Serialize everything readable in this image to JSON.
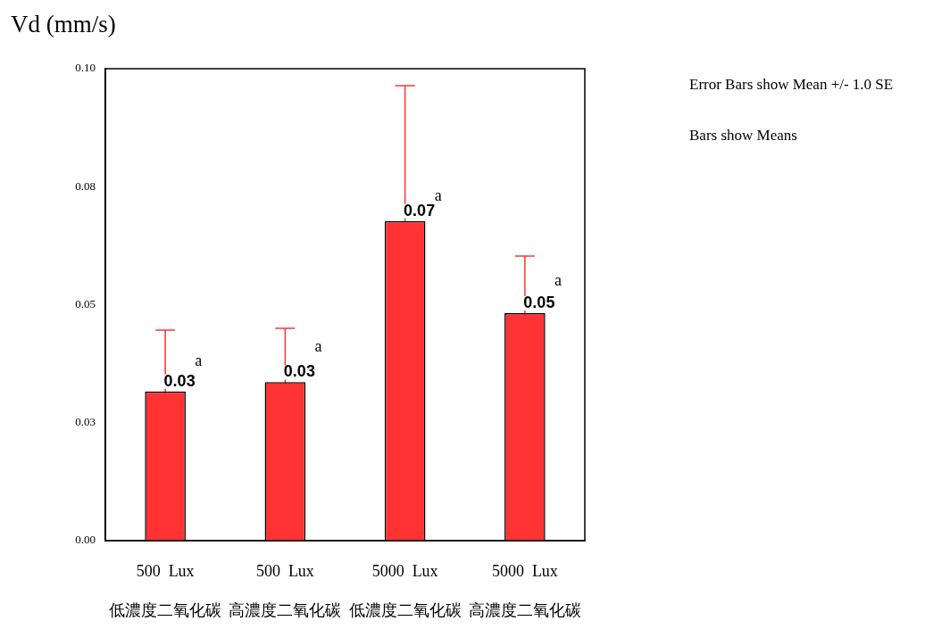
{
  "chart_data": {
    "type": "bar",
    "ylabel": "Vd (mm/s)",
    "categories": [
      "500  Lux\n低濃度二氧化碳",
      "500  Lux\n高濃度二氧化碳",
      "5000  Lux\n低濃度二氧化碳",
      "5000  Lux\n高濃度二氧化碳"
    ],
    "values": [
      0.0316,
      0.0336,
      0.0677,
      0.0482
    ],
    "errors": [
      0.013,
      0.0114,
      0.0287,
      0.0121
    ],
    "value_labels": [
      "0.03",
      "0.03",
      "0.07",
      "0.05"
    ],
    "color": "#ff3333",
    "ylim": [
      0,
      0.1
    ],
    "yticks": [
      {
        "value": 0,
        "label": "0.00"
      },
      {
        "value": 0.025,
        "label": "0.03"
      },
      {
        "value": 0.05,
        "label": "0.05"
      },
      {
        "value": 0.075,
        "label": "0.08"
      },
      {
        "value": 0.1,
        "label": "0.10"
      }
    ],
    "grid": false,
    "legend": false,
    "annotations": [
      {
        "text": "a",
        "x": "500  Lux\n低濃度二氧化碳",
        "y": 0.038
      },
      {
        "text": "a",
        "x": "500  Lux\n高濃度二氧化碳",
        "y": 0.041
      },
      {
        "text": "a",
        "x": "5000  Lux\n低濃度二氧化碳",
        "y": 0.073
      },
      {
        "text": "a",
        "x": "5000  Lux\n高濃度二氧化碳",
        "y": 0.055
      },
      "Error Bars show Mean +/- 1.0 SE",
      "Bars show Means"
    ]
  }
}
